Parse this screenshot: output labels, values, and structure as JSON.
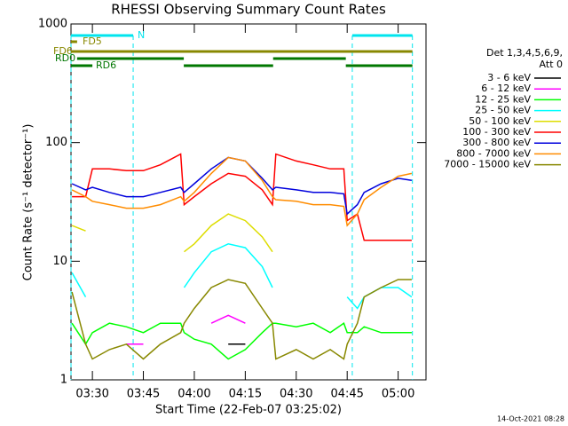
{
  "chart_data": {
    "type": "line",
    "title": "RHESSI Observing Summary Count Rates",
    "x_label": "Start Time (22-Feb-07 03:25:02)",
    "y_label": "Count Rate (s⁻¹ detector⁻¹)",
    "legend_title": [
      "Det 1,3,4,5,6,9,",
      "Att 0"
    ],
    "footer": "14-Oct-2021 08:28",
    "log_y": true,
    "xlim": [
      23.7,
      128.2
    ],
    "xticks": [
      {
        "value": 30,
        "label": "03:30"
      },
      {
        "value": 45,
        "label": "03:45"
      },
      {
        "value": 60,
        "label": "04:00"
      },
      {
        "value": 75,
        "label": "04:15"
      },
      {
        "value": 90,
        "label": "04:30"
      },
      {
        "value": 105,
        "label": "04:45"
      },
      {
        "value": 120,
        "label": "05:00"
      }
    ],
    "ylim": [
      1,
      1000
    ],
    "yticks": [
      1,
      10,
      100,
      1000
    ],
    "x": [
      24,
      28,
      30,
      35,
      40,
      45,
      50,
      56,
      57,
      60,
      65,
      70,
      75,
      80,
      83,
      84,
      90,
      95,
      100,
      104,
      105,
      108,
      110,
      115,
      120,
      124
    ],
    "series": [
      {
        "name": "3 - 6 keV",
        "color": "#000000",
        "values": [
          null,
          null,
          null,
          null,
          null,
          null,
          null,
          null,
          null,
          null,
          null,
          2,
          2,
          null,
          null,
          null,
          null,
          null,
          null,
          null,
          null,
          null,
          null,
          null,
          null,
          null
        ]
      },
      {
        "name": "6 - 12 keV",
        "color": "#ff00ff",
        "values": [
          null,
          null,
          null,
          null,
          2,
          2,
          null,
          null,
          null,
          null,
          3,
          3.5,
          3,
          null,
          null,
          null,
          null,
          null,
          null,
          null,
          null,
          null,
          null,
          null,
          null,
          null
        ]
      },
      {
        "name": "12 - 25 keV",
        "color": "#00ff00",
        "values": [
          3,
          2,
          2.5,
          3,
          2.8,
          2.5,
          3,
          3,
          2.5,
          2.2,
          2,
          1.5,
          1.8,
          2.5,
          3,
          3,
          2.8,
          3,
          2.5,
          3,
          2.5,
          2.5,
          2.8,
          2.5,
          2.5,
          2.5
        ]
      },
      {
        "name": "25 - 50 keV",
        "color": "#00ffff",
        "values": [
          8,
          5,
          null,
          null,
          null,
          null,
          null,
          null,
          6,
          8,
          12,
          14,
          13,
          9,
          6,
          null,
          null,
          null,
          null,
          null,
          5,
          4,
          5,
          6,
          6,
          5
        ]
      },
      {
        "name": "50 - 100 keV",
        "color": "#dddd00",
        "values": [
          20,
          18,
          null,
          null,
          null,
          null,
          null,
          null,
          12,
          14,
          20,
          25,
          22,
          16,
          12,
          null,
          null,
          null,
          null,
          null,
          null,
          null,
          null,
          null,
          null,
          null
        ]
      },
      {
        "name": "100 - 300 keV",
        "color": "#ff0000",
        "values": [
          35,
          35,
          60,
          60,
          58,
          58,
          65,
          80,
          30,
          35,
          45,
          55,
          52,
          40,
          30,
          80,
          70,
          65,
          60,
          60,
          22,
          25,
          15,
          15,
          15,
          15
        ]
      },
      {
        "name": "300 - 800 keV",
        "color": "#0000dd",
        "values": [
          45,
          40,
          42,
          38,
          35,
          35,
          38,
          42,
          38,
          45,
          60,
          75,
          70,
          50,
          40,
          42,
          40,
          38,
          38,
          37,
          25,
          30,
          38,
          45,
          50,
          48
        ]
      },
      {
        "name": "800 - 7000 keV",
        "color": "#ff8c00",
        "values": [
          40,
          35,
          32,
          30,
          28,
          28,
          30,
          35,
          32,
          38,
          55,
          75,
          70,
          48,
          35,
          33,
          32,
          30,
          30,
          29,
          20,
          25,
          33,
          42,
          52,
          55
        ]
      },
      {
        "name": "7000 - 15000 keV",
        "color": "#888800",
        "values": [
          5.5,
          2,
          1.5,
          1.8,
          2,
          1.5,
          2,
          2.5,
          3,
          4,
          6,
          7,
          6.5,
          4,
          3,
          1.5,
          1.8,
          1.5,
          1.8,
          1.5,
          2,
          3,
          5,
          6,
          7,
          7
        ]
      }
    ],
    "flags": [
      {
        "label": "N",
        "color": "#00e5ee",
        "segments": [
          [
            23.7,
            42
          ],
          [
            106.5,
            124.2
          ]
        ]
      },
      {
        "label": "FD5",
        "color": "#888800",
        "segments": [
          [
            23.7,
            25.5
          ]
        ]
      },
      {
        "label": "FD6",
        "color": "#888800",
        "segments": [
          [
            23.7,
            124.2
          ]
        ]
      },
      {
        "label": "RD0",
        "color": "#007700",
        "segments": [
          [
            25.5,
            56.9
          ],
          [
            83.2,
            104.6
          ]
        ]
      },
      {
        "label": "RD6",
        "color": "#007700",
        "segments": [
          [
            23.7,
            30
          ],
          [
            56.9,
            83.2
          ],
          [
            104.6,
            124.2
          ]
        ]
      }
    ]
  }
}
